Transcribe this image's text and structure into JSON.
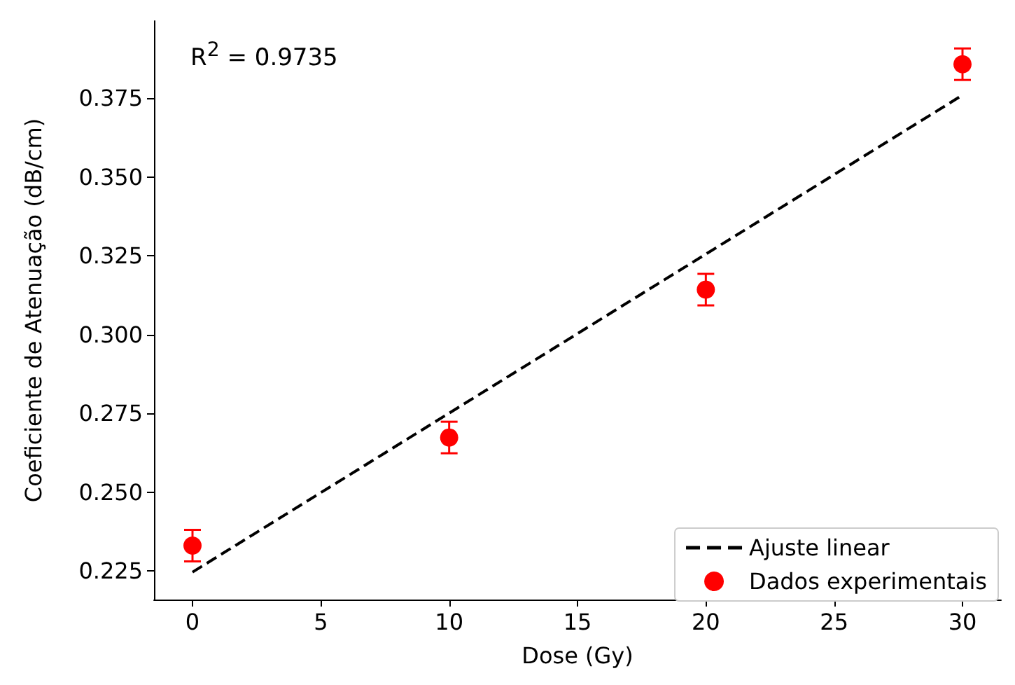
{
  "chart_data": {
    "type": "scatter",
    "xlabel": "Dose (Gy)",
    "ylabel": "Coeficiente de Atenuação (dB/cm)",
    "annotations": [
      "R$^{2}$ = 0.9735"
    ],
    "series": [
      {
        "name": "Ajuste linear",
        "type": "line",
        "color": "#000000",
        "line_style": "dashed",
        "marker": "none",
        "x": [
          0,
          30
        ],
        "values": [
          0.2247,
          0.376
        ]
      },
      {
        "name": "Dados experimentais",
        "type": "scatter",
        "color": "#ff0000",
        "marker": "circle",
        "x": [
          0,
          10,
          20,
          30
        ],
        "values": [
          0.2331,
          0.2674,
          0.3143,
          0.3858
        ],
        "errors": [
          0.005,
          0.005,
          0.005,
          0.005
        ]
      }
    ],
    "xlim": [
      -1.5,
      31.5
    ],
    "xticks": [
      0,
      5,
      10,
      15,
      20,
      25,
      30
    ],
    "ylim": [
      0.216,
      0.3995
    ],
    "yticks": [
      {
        "value": 0.225,
        "label": "0.225"
      },
      {
        "value": 0.25,
        "label": "0.250"
      },
      {
        "value": 0.275,
        "label": "0.275"
      },
      {
        "value": 0.3,
        "label": "0.300"
      },
      {
        "value": 0.325,
        "label": "0.325"
      },
      {
        "value": 0.35,
        "label": "0.350"
      },
      {
        "value": 0.375,
        "label": "0.375"
      }
    ],
    "grid": false,
    "legend": "bottom right"
  }
}
